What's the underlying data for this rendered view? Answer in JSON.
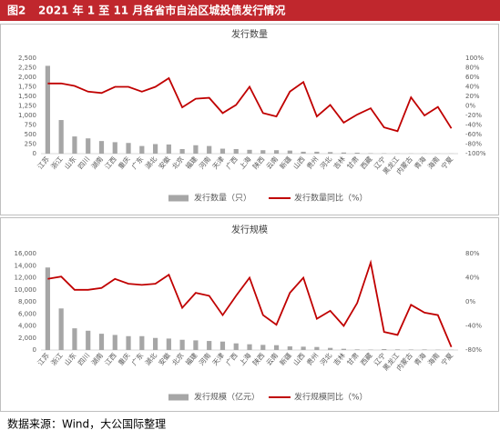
{
  "header": {
    "label": "图2",
    "title": "2021 年 1 至 11 月各省市自治区城投债发行情况"
  },
  "source": "数据来源：Wind，大公国际整理",
  "chart_data": [
    {
      "type": "bar-line",
      "title": "发行数量",
      "categories": [
        "江苏",
        "浙江",
        "山东",
        "四川",
        "湖南",
        "江西",
        "重庆",
        "广东",
        "湖北",
        "安徽",
        "北京",
        "福建",
        "河南",
        "天津",
        "广西",
        "上海",
        "陕西",
        "云南",
        "新疆",
        "山西",
        "贵州",
        "河北",
        "吉林",
        "甘肃",
        "西藏",
        "辽宁",
        "黑龙江",
        "内蒙古",
        "青海",
        "海南",
        "宁夏"
      ],
      "series": [
        {
          "name": "发行数量（只）",
          "type": "bar",
          "color": "#a6a6a6",
          "values": [
            2300,
            880,
            450,
            400,
            330,
            300,
            280,
            200,
            250,
            240,
            120,
            220,
            200,
            130,
            120,
            100,
            90,
            90,
            80,
            50,
            50,
            40,
            30,
            25,
            10,
            8,
            5,
            5,
            4,
            3,
            3
          ]
        },
        {
          "name": "发行数量同比（%）",
          "type": "line",
          "axis": "y2",
          "color": "#c00000",
          "values": [
            47,
            47,
            42,
            30,
            27,
            40,
            40,
            30,
            40,
            58,
            -3,
            15,
            17,
            -15,
            2,
            40,
            -15,
            -22,
            30,
            50,
            -22,
            2,
            -35,
            -18,
            -5,
            -45,
            -53,
            18,
            -20,
            -2,
            -47
          ]
        }
      ],
      "ylim": [
        0,
        2500
      ],
      "yticks": [
        0,
        {
          "value": 250,
          "label": "250"
        },
        500,
        750,
        {
          "value": 1000,
          "label": "1,000"
        },
        {
          "value": 1250,
          "label": "1,250"
        },
        {
          "value": 1500,
          "label": "1,500"
        },
        {
          "value": 1750,
          "label": "1,750"
        },
        {
          "value": 2000,
          "label": "2,000"
        },
        {
          "value": 2250,
          "label": "2,250"
        },
        {
          "value": 2500,
          "label": "2,500"
        }
      ],
      "y2lim": [
        -100,
        100
      ],
      "y2ticks": [
        {
          "value": -100,
          "label": "-100%"
        },
        {
          "value": -80,
          "label": "-80%"
        },
        {
          "value": -60,
          "label": "-60%"
        },
        {
          "value": -40,
          "label": "-40%"
        },
        {
          "value": -20,
          "label": "-20%"
        },
        {
          "value": 0,
          "label": "0%"
        },
        {
          "value": 20,
          "label": "20%"
        },
        {
          "value": 40,
          "label": "40%"
        },
        {
          "value": 60,
          "label": "60%"
        },
        {
          "value": 80,
          "label": "80%"
        },
        {
          "value": 100,
          "label": "100%"
        }
      ],
      "grid": false
    },
    {
      "type": "bar-line",
      "title": "发行规模",
      "categories": [
        "江苏",
        "浙江",
        "山东",
        "四川",
        "湖南",
        "江西",
        "重庆",
        "广东",
        "湖北",
        "安徽",
        "北京",
        "福建",
        "河南",
        "天津",
        "广西",
        "上海",
        "陕西",
        "云南",
        "新疆",
        "山西",
        "贵州",
        "河北",
        "吉林",
        "甘肃",
        "西藏",
        "辽宁",
        "黑龙江",
        "内蒙古",
        "青海",
        "海南",
        "宁夏"
      ],
      "series": [
        {
          "name": "发行规模（亿元）",
          "type": "bar",
          "color": "#a6a6a6",
          "values": [
            13700,
            6900,
            3600,
            3200,
            2700,
            2500,
            2300,
            2300,
            2000,
            1900,
            1700,
            1600,
            1500,
            1400,
            1100,
            950,
            850,
            800,
            600,
            550,
            500,
            350,
            200,
            100,
            60,
            150,
            100,
            80,
            90,
            50,
            40
          ]
        },
        {
          "name": "发行规模同比（%）",
          "type": "line",
          "axis": "y2",
          "color": "#c00000",
          "values": [
            38,
            42,
            20,
            20,
            23,
            38,
            30,
            28,
            30,
            45,
            -10,
            15,
            10,
            -22,
            10,
            40,
            -22,
            -38,
            15,
            40,
            -28,
            -15,
            -40,
            -2,
            65,
            -50,
            -55,
            -5,
            -18,
            -22,
            -75
          ]
        }
      ],
      "ylim": [
        0,
        16000
      ],
      "yticks": [
        0,
        {
          "value": 2000,
          "label": "2,000"
        },
        {
          "value": 4000,
          "label": "4,000"
        },
        {
          "value": 6000,
          "label": "6,000"
        },
        {
          "value": 8000,
          "label": "8,000"
        },
        {
          "value": 10000,
          "label": "10,000"
        },
        {
          "value": 12000,
          "label": "12,000"
        },
        {
          "value": 14000,
          "label": "14,000"
        },
        {
          "value": 16000,
          "label": "16,000"
        }
      ],
      "y2lim": [
        -80,
        80
      ],
      "y2ticks": [
        {
          "value": -80,
          "label": "-80%"
        },
        {
          "value": -40,
          "label": "-40%"
        },
        {
          "value": 0,
          "label": "0%"
        },
        {
          "value": 40,
          "label": "40%"
        },
        {
          "value": 80,
          "label": "80%"
        }
      ],
      "grid": false
    }
  ]
}
